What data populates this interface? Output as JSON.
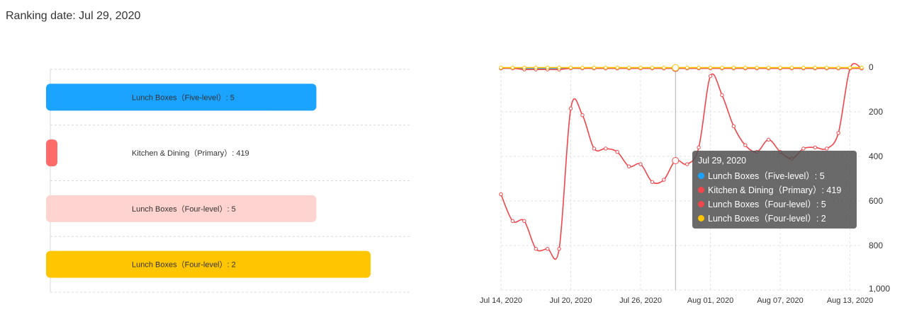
{
  "header": {
    "ranking_label": "Ranking date: Jul 29, 2020"
  },
  "chart_data": [
    {
      "type": "bar",
      "orientation": "horizontal",
      "categories": [
        "Lunch Boxes (Five-level)",
        "Kitchen & Dining (Primary)",
        "Lunch Boxes (Four-level)",
        "Lunch Boxes (Four-level)"
      ],
      "labels": [
        "Lunch Boxes（Five-level）: 5",
        "Kitchen & Dining（Primary）: 419",
        "Lunch Boxes（Four-level）: 5",
        "Lunch Boxes（Four-level）: 2"
      ],
      "values": [
        5,
        419,
        5,
        2
      ],
      "colors": [
        "#1aa3ff",
        "#ff6b6b",
        "#ffd3cf",
        "#ffc600"
      ],
      "grid": true
    },
    {
      "type": "line",
      "x": [
        "Jul 14, 2020",
        "Jul 15, 2020",
        "Jul 16, 2020",
        "Jul 17, 2020",
        "Jul 18, 2020",
        "Jul 19, 2020",
        "Jul 20, 2020",
        "Jul 21, 2020",
        "Jul 22, 2020",
        "Jul 23, 2020",
        "Jul 24, 2020",
        "Jul 25, 2020",
        "Jul 26, 2020",
        "Jul 27, 2020",
        "Jul 28, 2020",
        "Jul 29, 2020",
        "Jul 30, 2020",
        "Jul 31, 2020",
        "Aug 01, 2020",
        "Aug 02, 2020",
        "Aug 03, 2020",
        "Aug 04, 2020",
        "Aug 05, 2020",
        "Aug 06, 2020",
        "Aug 07, 2020",
        "Aug 08, 2020",
        "Aug 09, 2020",
        "Aug 10, 2020",
        "Aug 11, 2020",
        "Aug 12, 2020",
        "Aug 13, 2020",
        "Aug 14, 2020"
      ],
      "x_ticks": [
        "Jul 14, 2020",
        "Jul 20, 2020",
        "Jul 26, 2020",
        "Aug 01, 2020",
        "Aug 07, 2020",
        "Aug 13, 2020"
      ],
      "y_ticks": [
        "0",
        "200",
        "400",
        "600",
        "800",
        "1,000"
      ],
      "ylim": [
        0,
        1000
      ],
      "y_inverted": true,
      "y_axis_side": "right",
      "series": [
        {
          "name": "Lunch Boxes (Five-level)",
          "color": "#1aa3ff",
          "values": [
            5,
            5,
            5,
            5,
            5,
            5,
            5,
            5,
            5,
            5,
            5,
            5,
            5,
            5,
            5,
            5,
            5,
            5,
            5,
            5,
            5,
            5,
            5,
            5,
            5,
            5,
            5,
            5,
            5,
            5,
            5,
            5
          ]
        },
        {
          "name": "Kitchen & Dining (Primary)",
          "color": "#f0464b",
          "values": [
            570,
            690,
            690,
            815,
            815,
            815,
            185,
            215,
            365,
            365,
            380,
            445,
            435,
            515,
            505,
            419,
            435,
            360,
            40,
            125,
            265,
            350,
            380,
            325,
            380,
            410,
            365,
            360,
            365,
            295,
            5,
            5
          ]
        },
        {
          "name": "Lunch Boxes (Four-level)",
          "color": "#f0464b",
          "values": [
            5,
            5,
            10,
            10,
            10,
            10,
            5,
            5,
            5,
            5,
            5,
            5,
            5,
            5,
            5,
            5,
            5,
            5,
            5,
            5,
            5,
            5,
            5,
            5,
            5,
            5,
            5,
            5,
            5,
            5,
            5,
            5
          ]
        },
        {
          "name": "Lunch Boxes (Four-level)",
          "color": "#ffc600",
          "values": [
            2,
            2,
            2,
            2,
            2,
            2,
            2,
            2,
            2,
            2,
            2,
            2,
            2,
            2,
            2,
            2,
            2,
            2,
            2,
            2,
            2,
            2,
            2,
            2,
            2,
            2,
            2,
            2,
            2,
            2,
            2,
            2
          ]
        }
      ],
      "highlight_x": "Jul 29, 2020"
    }
  ],
  "tooltip": {
    "title": "Jul 29, 2020",
    "rows": [
      {
        "text": "Lunch Boxes（Five-level）: 5",
        "color": "#1aa3ff"
      },
      {
        "text": "Kitchen & Dining（Primary）: 419",
        "color": "#f0464b"
      },
      {
        "text": "Lunch Boxes（Four-level）: 5",
        "color": "#f0464b"
      },
      {
        "text": "Lunch Boxes（Four-level）: 2",
        "color": "#ffc600"
      }
    ]
  }
}
